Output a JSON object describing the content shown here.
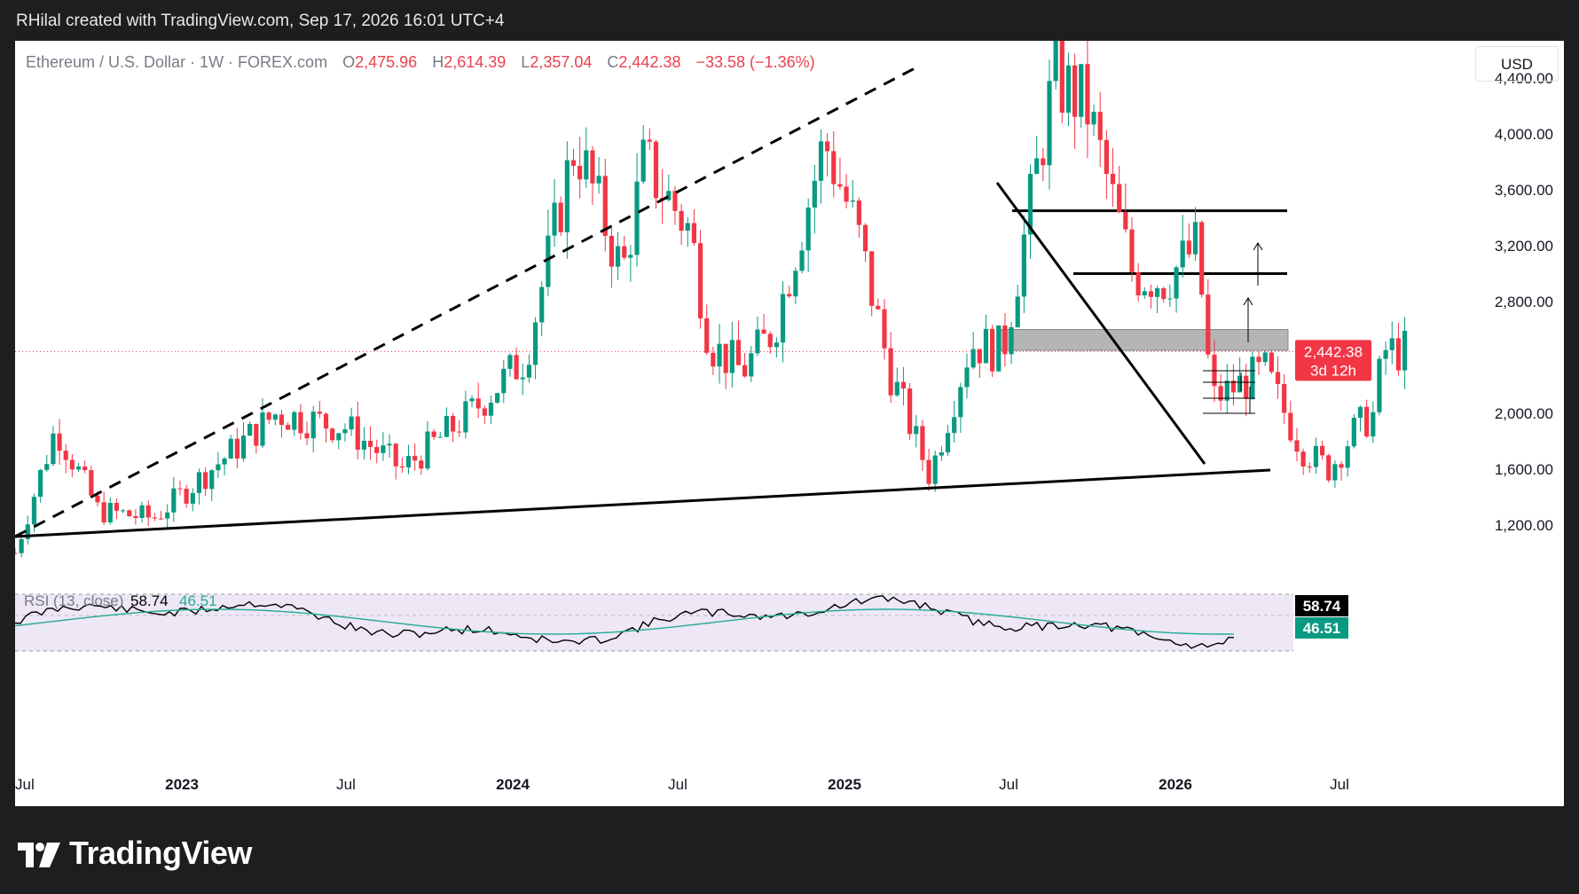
{
  "header": {
    "text": "RHilal created with TradingView.com, Sep 17, 2026 16:01 UTC+4"
  },
  "legend": {
    "symbol": "Ethereum / U.S. Dollar · 1W · FOREX.com",
    "open_label": "O",
    "open": "2,475.96",
    "high_label": "H",
    "high": "2,614.39",
    "low_label": "L",
    "low": "2,357.04",
    "close_label": "C",
    "close": "2,442.38",
    "change": "−33.58 (−1.36%)"
  },
  "currency": "USD",
  "price_tag": {
    "price": "2,442.38",
    "countdown": "3d 12h"
  },
  "rsi": {
    "label": "RSI (13, close)",
    "value": "58.74",
    "ma": "46.51"
  },
  "brand": {
    "name": "TradingView"
  },
  "colors": {
    "up": "#089981",
    "down": "#f23645",
    "rsi_line": "#000000",
    "rsi_ma": "#22ab94",
    "rsi_band": "#ede7f6",
    "price_tag": "#f23645",
    "rsi_tag": "#000000",
    "rsi_ma_tag": "#089981"
  },
  "chart_data": {
    "type": "candlestick",
    "title": "Ethereum / U.S. Dollar · 1W · FOREX.com",
    "y_ticks": [
      "4,400.00",
      "4,000.00",
      "3,600.00",
      "3,200.00",
      "2,800.00",
      "2,000.00",
      "1,600.00",
      "1,200.00"
    ],
    "x_ticks": [
      "Jul",
      "2023",
      "Jul",
      "2024",
      "Jul",
      "2025",
      "Jul",
      "2026",
      "Jul"
    ],
    "ylim": [
      1000,
      4800
    ],
    "resistance_zone": [
      2450,
      2600
    ],
    "horizontal_levels": [
      3450,
      3000
    ],
    "last_price": 2442.38,
    "weekly_close_path": [
      {
        "date": "2022-07-01",
        "price": 1000
      },
      {
        "date": "2022-08-15",
        "price": 1900
      },
      {
        "date": "2022-10-01",
        "price": 1300
      },
      {
        "date": "2022-12-01",
        "price": 1250
      },
      {
        "date": "2023-04-15",
        "price": 2000
      },
      {
        "date": "2023-07-01",
        "price": 1900
      },
      {
        "date": "2023-09-01",
        "price": 1600
      },
      {
        "date": "2023-11-15",
        "price": 2000
      },
      {
        "date": "2024-01-15",
        "price": 2400
      },
      {
        "date": "2024-03-10",
        "price": 3950
      },
      {
        "date": "2024-05-01",
        "price": 3000
      },
      {
        "date": "2024-05-25",
        "price": 3800
      },
      {
        "date": "2024-07-15",
        "price": 3300
      },
      {
        "date": "2024-08-05",
        "price": 2500
      },
      {
        "date": "2024-09-10",
        "price": 2300
      },
      {
        "date": "2024-10-15",
        "price": 2600
      },
      {
        "date": "2024-12-10",
        "price": 3950
      },
      {
        "date": "2025-01-15",
        "price": 3300
      },
      {
        "date": "2025-02-20",
        "price": 2300
      },
      {
        "date": "2025-04-05",
        "price": 1550
      },
      {
        "date": "2025-05-20",
        "price": 2500
      },
      {
        "date": "2025-06-25",
        "price": 2450
      },
      {
        "date": "2025-08-20",
        "price": 4400
      },
      {
        "date": "2025-09-25",
        "price": 4200
      },
      {
        "date": "2025-11-15",
        "price": 3000
      },
      {
        "date": "2025-12-20",
        "price": 2950
      },
      {
        "date": "2026-01-25",
        "price": 3200
      },
      {
        "date": "2026-02-10",
        "price": 2100
      },
      {
        "date": "2026-04-10",
        "price": 2300
      },
      {
        "date": "2026-05-20",
        "price": 1750
      },
      {
        "date": "2026-06-20",
        "price": 1600
      },
      {
        "date": "2026-07-20",
        "price": 1900
      },
      {
        "date": "2026-08-10",
        "price": 2000
      },
      {
        "date": "2026-08-17",
        "price": 2450
      },
      {
        "date": "2026-09-14",
        "price": 2442.38
      }
    ],
    "rsi_series": [
      {
        "name": "RSI",
        "last": 58.74
      },
      {
        "name": "RSI MA",
        "last": 46.51
      }
    ]
  }
}
